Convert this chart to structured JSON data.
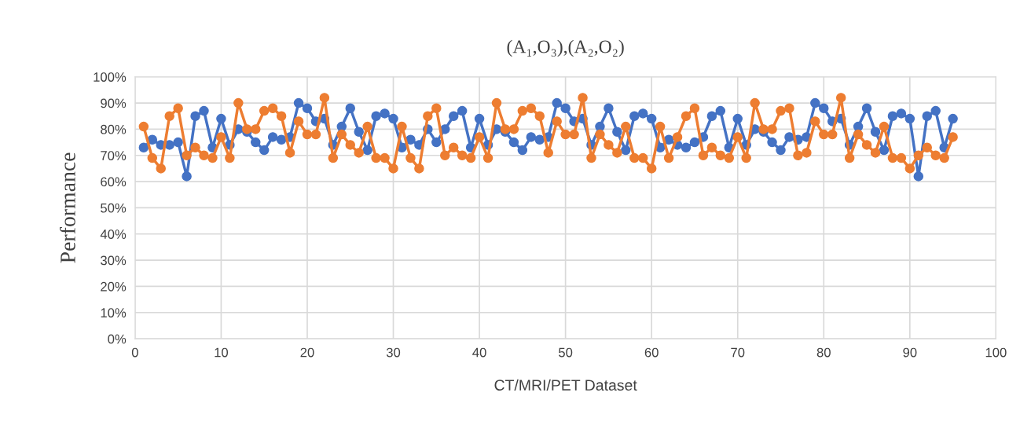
{
  "chart_data": {
    "type": "line",
    "title": "(A₁,O₃),(A₂,O₂)",
    "xlabel": "CT/MRI/PET Dataset",
    "ylabel": "Performance",
    "x": [
      1,
      2,
      3,
      4,
      5,
      6,
      7,
      8,
      9,
      10,
      11,
      12,
      13,
      14,
      15,
      16,
      17,
      18,
      19,
      20,
      21,
      22,
      23,
      24,
      25,
      26,
      27,
      28,
      29,
      30,
      31,
      32,
      33,
      34,
      35,
      36,
      37,
      38,
      39,
      40,
      41,
      42,
      43,
      44,
      45,
      46,
      47,
      48,
      49,
      50,
      51,
      52,
      53,
      54,
      55,
      56,
      57,
      58,
      59,
      60,
      61,
      62,
      63,
      64,
      65,
      66,
      67,
      68,
      69,
      70,
      71,
      72,
      73,
      74,
      75,
      76,
      77,
      78,
      79,
      80,
      81,
      82,
      83,
      84,
      85,
      86,
      87,
      88,
      89,
      90,
      91,
      92,
      93,
      94,
      95
    ],
    "series": [
      {
        "color": "#4472c4",
        "values": [
          73,
          76,
          74,
          74,
          75,
          62,
          85,
          87,
          73,
          84,
          74,
          80,
          79,
          75,
          72,
          77,
          76,
          77,
          90,
          88,
          83,
          84,
          74,
          81,
          88,
          79,
          72,
          85,
          86,
          84,
          73,
          76,
          74,
          80,
          75,
          80,
          85,
          87,
          73,
          84,
          74,
          80,
          79,
          75,
          72,
          77,
          76,
          77,
          90,
          88,
          83,
          84,
          74,
          81,
          88,
          79,
          72,
          85,
          86,
          84,
          73,
          76,
          74,
          73,
          75,
          77,
          85,
          87,
          73,
          84,
          74,
          80,
          79,
          75,
          72,
          77,
          76,
          77,
          90,
          88,
          83,
          84,
          74,
          81,
          88,
          79,
          72,
          85,
          86,
          84,
          62,
          85,
          87,
          73,
          84
        ]
      },
      {
        "color": "#ed7d31",
        "values": [
          81,
          69,
          65,
          85,
          88,
          70,
          73,
          70,
          69,
          77,
          69,
          90,
          80,
          80,
          87,
          88,
          85,
          71,
          83,
          78,
          78,
          92,
          69,
          78,
          74,
          71,
          81,
          69,
          69,
          65,
          81,
          69,
          65,
          85,
          88,
          70,
          73,
          70,
          69,
          77,
          69,
          90,
          80,
          80,
          87,
          88,
          85,
          71,
          83,
          78,
          78,
          92,
          69,
          78,
          74,
          71,
          81,
          69,
          69,
          65,
          81,
          69,
          77,
          85,
          88,
          70,
          73,
          70,
          69,
          77,
          69,
          90,
          80,
          80,
          87,
          88,
          70,
          71,
          83,
          78,
          78,
          92,
          69,
          78,
          74,
          71,
          81,
          69,
          69,
          65,
          70,
          73,
          70,
          69,
          77
        ]
      }
    ],
    "xlim": [
      0,
      100
    ],
    "xticks": [
      0,
      10,
      20,
      30,
      40,
      50,
      60,
      70,
      80,
      90,
      100
    ],
    "ylim": [
      0,
      100
    ],
    "yticks": [
      {
        "value": 0,
        "label": "0%"
      },
      {
        "value": 10,
        "label": "10%"
      },
      {
        "value": 20,
        "label": "20%"
      },
      {
        "value": 30,
        "label": "30%"
      },
      {
        "value": 40,
        "label": "40%"
      },
      {
        "value": 50,
        "label": "50%"
      },
      {
        "value": 60,
        "label": "60%"
      },
      {
        "value": 70,
        "label": "70%"
      },
      {
        "value": 80,
        "label": "80%"
      },
      {
        "value": 90,
        "label": "90%"
      },
      {
        "value": 100,
        "label": "100%"
      }
    ],
    "grid": true,
    "marker": "circle",
    "line_style": "solid",
    "legend": false
  }
}
